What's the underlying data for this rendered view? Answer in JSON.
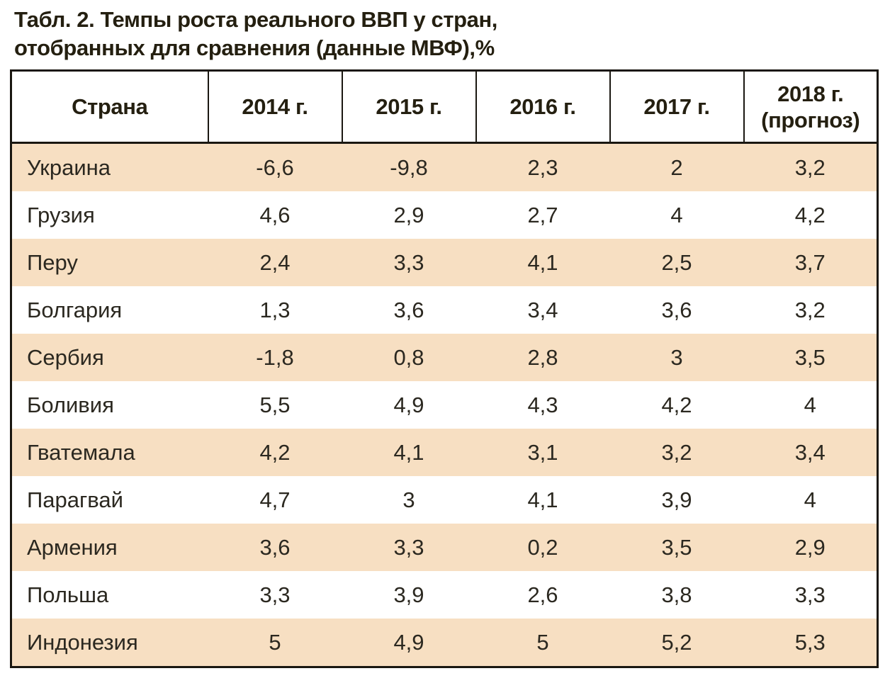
{
  "page": {
    "title_line1": "Табл. 2. Темпы роста реального ВВП у стран,",
    "title_line2": "отобранных для сравнения (данные МВФ),%"
  },
  "table": {
    "header": {
      "country": "Страна",
      "y2014": "2014 г.",
      "y2015": "2015 г.",
      "y2016": "2016 г.",
      "y2017": "2017 г.",
      "y2018_line1": "2018 г.",
      "y2018_line2": "(прогноз)"
    },
    "rows": [
      {
        "country": "Украина",
        "values": [
          "-6,6",
          "-9,8",
          "2,3",
          "2",
          "3,2"
        ]
      },
      {
        "country": "Грузия",
        "values": [
          "4,6",
          "2,9",
          "2,7",
          "4",
          "4,2"
        ]
      },
      {
        "country": "Перу",
        "values": [
          "2,4",
          "3,3",
          "4,1",
          "2,5",
          "3,7"
        ]
      },
      {
        "country": "Болгария",
        "values": [
          "1,3",
          "3,6",
          "3,4",
          "3,6",
          "3,2"
        ]
      },
      {
        "country": "Сербия",
        "values": [
          "-1,8",
          "0,8",
          "2,8",
          "3",
          "3,5"
        ]
      },
      {
        "country": "Боливия",
        "values": [
          "5,5",
          "4,9",
          "4,3",
          "4,2",
          "4"
        ]
      },
      {
        "country": "Гватемала",
        "values": [
          "4,2",
          "4,1",
          "3,1",
          "3,2",
          "3,4"
        ]
      },
      {
        "country": "Парагвай",
        "values": [
          "4,7",
          "3",
          "4,1",
          "3,9",
          "4"
        ]
      },
      {
        "country": "Армения",
        "values": [
          "3,6",
          "3,3",
          "0,2",
          "3,5",
          "2,9"
        ]
      },
      {
        "country": "Польша",
        "values": [
          "3,3",
          "3,9",
          "2,6",
          "3,8",
          "3,3"
        ]
      },
      {
        "country": "Индонезия",
        "values": [
          "5",
          "4,9",
          "5",
          "5,2",
          "5,3"
        ]
      }
    ]
  },
  "chart_data": {
    "type": "table",
    "title": "Табл. 2. Темпы роста реального ВВП у стран, отобранных для сравнения (данные МВФ),%",
    "columns": [
      "Страна",
      "2014 г.",
      "2015 г.",
      "2016 г.",
      "2017 г.",
      "2018 г. (прогноз)"
    ],
    "rows": [
      [
        "Украина",
        -6.6,
        -9.8,
        2.3,
        2,
        3.2
      ],
      [
        "Грузия",
        4.6,
        2.9,
        2.7,
        4,
        4.2
      ],
      [
        "Перу",
        2.4,
        3.3,
        4.1,
        2.5,
        3.7
      ],
      [
        "Болгария",
        1.3,
        3.6,
        3.4,
        3.6,
        3.2
      ],
      [
        "Сербия",
        -1.8,
        0.8,
        2.8,
        3,
        3.5
      ],
      [
        "Боливия",
        5.5,
        4.9,
        4.3,
        4.2,
        4
      ],
      [
        "Гватемала",
        4.2,
        4.1,
        3.1,
        3.2,
        3.4
      ],
      [
        "Парагвай",
        4.7,
        3,
        4.1,
        3.9,
        4
      ],
      [
        "Армения",
        3.6,
        3.3,
        0.2,
        3.5,
        2.9
      ],
      [
        "Польша",
        3.3,
        3.9,
        2.6,
        3.8,
        3.3
      ],
      [
        "Индонезия",
        5,
        4.9,
        5,
        5.2,
        5.3
      ]
    ]
  },
  "colors": {
    "row_shade": "#f7dfc2",
    "text": "#241f10",
    "border": "#1a1711"
  }
}
